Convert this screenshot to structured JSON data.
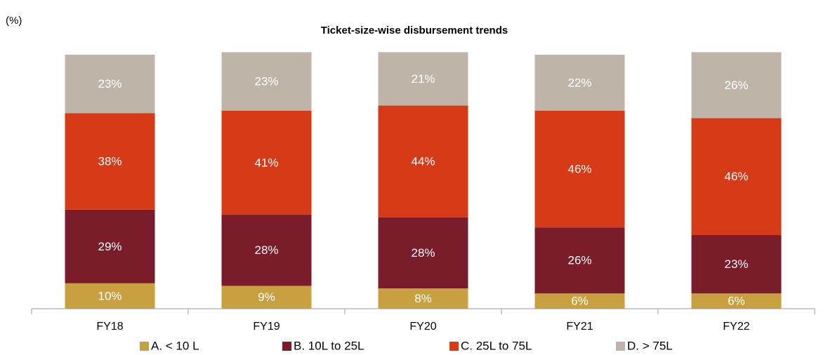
{
  "chart_data": {
    "type": "stacked_bar",
    "title": "Ticket-size-wise disbursement trends",
    "y_label": "(%)",
    "categories": [
      "FY18",
      "FY19",
      "FY20",
      "FY21",
      "FY22"
    ],
    "ylim": [
      0,
      100
    ],
    "series": [
      {
        "name": "A. < 10 L",
        "color": "#c9a03f",
        "values": [
          10,
          9,
          8,
          6,
          6
        ],
        "value_labels": [
          "10%",
          "9%",
          "8%",
          "6%",
          "6%"
        ]
      },
      {
        "name": "B. 10L to 25L",
        "color": "#7b1c2b",
        "values": [
          29,
          28,
          28,
          26,
          23
        ],
        "value_labels": [
          "29%",
          "28%",
          "28%",
          "26%",
          "23%"
        ]
      },
      {
        "name": "C. 25L to 75L",
        "color": "#d63a16",
        "values": [
          38,
          41,
          44,
          46,
          46
        ],
        "value_labels": [
          "38%",
          "41%",
          "44%",
          "46%",
          "46%"
        ]
      },
      {
        "name": "D. > 75L",
        "color": "#beb5a8",
        "values": [
          23,
          23,
          21,
          22,
          26
        ],
        "value_labels": [
          "23%",
          "23%",
          "21%",
          "22%",
          "26%"
        ]
      }
    ],
    "legend": "bottom"
  }
}
